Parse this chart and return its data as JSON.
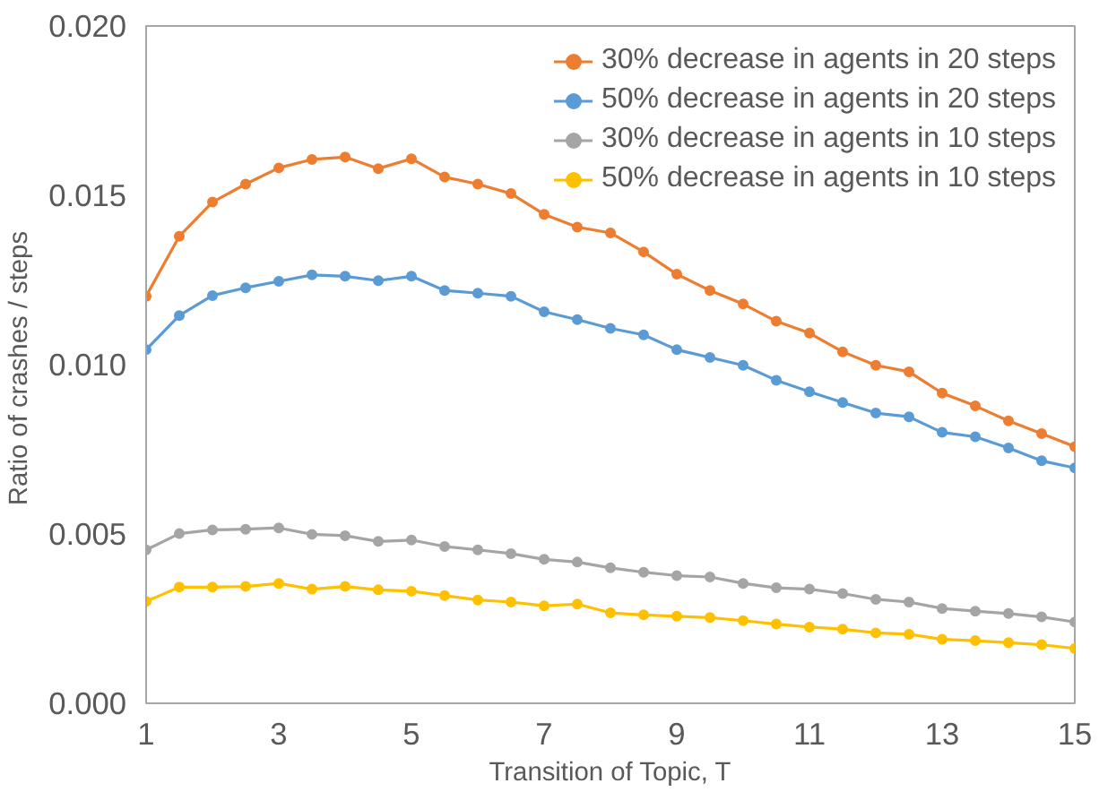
{
  "chart_data": {
    "type": "line",
    "xlabel": "Transition of Topic, T",
    "ylabel": "Ratio of crashes  / steps",
    "x": [
      1,
      1.5,
      2,
      2.5,
      3,
      3.5,
      4,
      4.5,
      5,
      5.5,
      6,
      6.5,
      7,
      7.5,
      8,
      8.5,
      9,
      9.5,
      10,
      10.5,
      11,
      11.5,
      12,
      12.5,
      13,
      13.5,
      14,
      14.5,
      15
    ],
    "series": [
      {
        "name": "30% decrease in agents in 20 steps",
        "color": "#ed7d31",
        "values": [
          0.01202,
          0.01379,
          0.0148,
          0.01533,
          0.01581,
          0.01606,
          0.01613,
          0.01579,
          0.01608,
          0.01554,
          0.01533,
          0.01505,
          0.01444,
          0.01406,
          0.01389,
          0.01333,
          0.01267,
          0.01219,
          0.01179,
          0.01128,
          0.01093,
          0.01038,
          0.00998,
          0.00979,
          0.00916,
          0.00878,
          0.00834,
          0.00796,
          0.00758
        ]
      },
      {
        "name": "50% decrease in agents in 20 steps",
        "color": "#5b9bd5",
        "values": [
          0.01044,
          0.01145,
          0.01204,
          0.01227,
          0.01246,
          0.01265,
          0.01261,
          0.01248,
          0.01261,
          0.01219,
          0.01211,
          0.01202,
          0.01156,
          0.01133,
          0.01107,
          0.01088,
          0.01044,
          0.01021,
          0.00998,
          0.00954,
          0.0092,
          0.00888,
          0.00857,
          0.00846,
          0.008,
          0.00787,
          0.00754,
          0.00716,
          0.00695
        ]
      },
      {
        "name": "30% decrease in agents in 10 steps",
        "color": "#a5a5a5",
        "values": [
          0.00453,
          0.00501,
          0.00512,
          0.00514,
          0.00518,
          0.00499,
          0.00495,
          0.00478,
          0.00482,
          0.00463,
          0.00453,
          0.00442,
          0.00425,
          0.00417,
          0.004,
          0.00387,
          0.00377,
          0.00373,
          0.00354,
          0.00341,
          0.00337,
          0.00324,
          0.00307,
          0.00299,
          0.0028,
          0.00272,
          0.00265,
          0.00255,
          0.0024
        ]
      },
      {
        "name": "50% decrease in agents in 10 steps",
        "color": "#ffc000",
        "values": [
          0.00301,
          0.00343,
          0.00343,
          0.00345,
          0.00354,
          0.00337,
          0.00345,
          0.00335,
          0.00331,
          0.00318,
          0.00305,
          0.00299,
          0.00288,
          0.00293,
          0.00267,
          0.00261,
          0.00257,
          0.00253,
          0.00244,
          0.00234,
          0.00225,
          0.00219,
          0.00208,
          0.00204,
          0.00189,
          0.00185,
          0.00179,
          0.00173,
          0.00162
        ]
      }
    ],
    "xlim": [
      1,
      15
    ],
    "xticks": [
      1,
      3,
      5,
      7,
      9,
      11,
      13,
      15
    ],
    "ylim": [
      0,
      0.02
    ],
    "yticks": [
      {
        "value": 0,
        "label": "0.000"
      },
      {
        "value": 0.005,
        "label": "0.005"
      },
      {
        "value": 0.01,
        "label": "0.010"
      },
      {
        "value": 0.015,
        "label": "0.015"
      },
      {
        "value": 0.02,
        "label": "0.020"
      }
    ],
    "legend": "top right",
    "marker": "circle",
    "line_style": "solid"
  }
}
